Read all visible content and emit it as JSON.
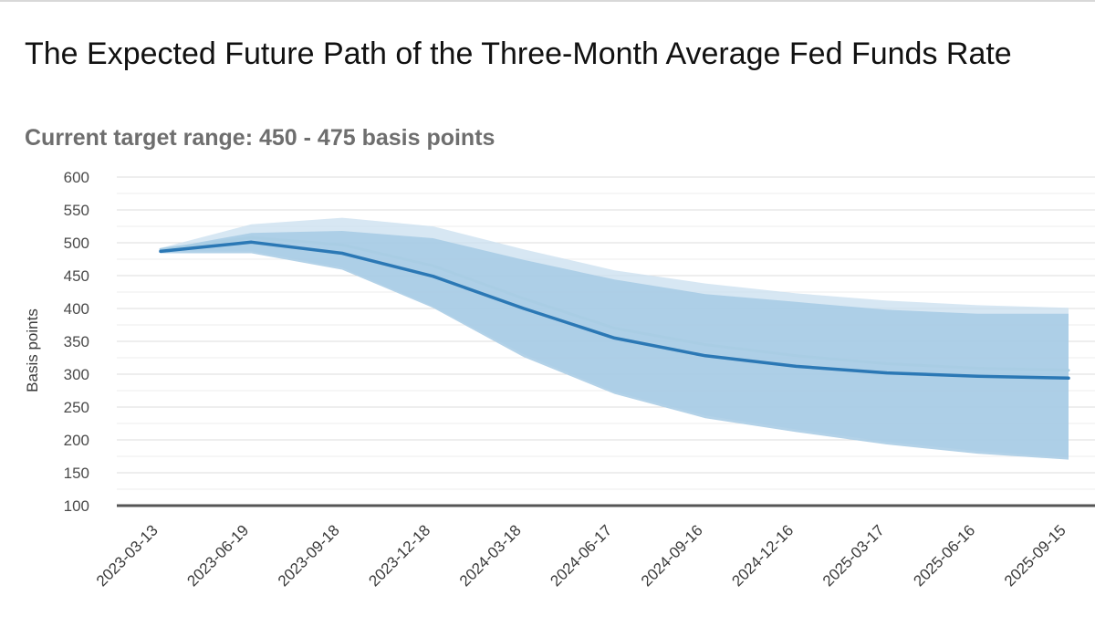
{
  "chart_data": {
    "type": "line",
    "title": "The Expected Future Path of the Three-Month Average Fed Funds Rate",
    "subtitle": "Current target range: 450 - 475 basis points",
    "ylabel": "Basis points",
    "xlabel": "",
    "ylim": [
      100,
      600
    ],
    "yticks": [
      100,
      150,
      200,
      250,
      300,
      350,
      400,
      450,
      500,
      550,
      600
    ],
    "grid": true,
    "legend": "none",
    "categories": [
      "2023-03-13",
      "2023-06-19",
      "2023-09-18",
      "2023-12-18",
      "2024-03-18",
      "2024-06-17",
      "2024-09-16",
      "2024-12-16",
      "2025-03-17",
      "2025-06-16",
      "2025-09-15"
    ],
    "series": [
      {
        "role": "median",
        "color": "#2b78b5",
        "values": [
          487,
          501,
          484,
          449,
          400,
          355,
          328,
          312,
          302,
          297,
          294
        ]
      },
      {
        "role": "previous-median",
        "color": "#a9cde4",
        "values": [
          490,
          508,
          497,
          465,
          415,
          370,
          345,
          328,
          316,
          309,
          306
        ]
      }
    ],
    "bands": [
      {
        "role": "outer-range",
        "color": "#c9dfef",
        "upper": [
          492,
          528,
          538,
          525,
          490,
          458,
          438,
          423,
          412,
          405,
          401
        ],
        "lower": [
          487,
          487,
          462,
          403,
          330,
          273,
          237,
          216,
          197,
          183,
          173
        ]
      },
      {
        "role": "inner-range",
        "color": "#a6cae4",
        "upper": [
          490,
          515,
          518,
          507,
          474,
          444,
          422,
          410,
          398,
          392,
          392
        ],
        "lower": [
          484,
          484,
          459,
          401,
          326,
          270,
          233,
          212,
          193,
          179,
          170
        ]
      }
    ]
  }
}
